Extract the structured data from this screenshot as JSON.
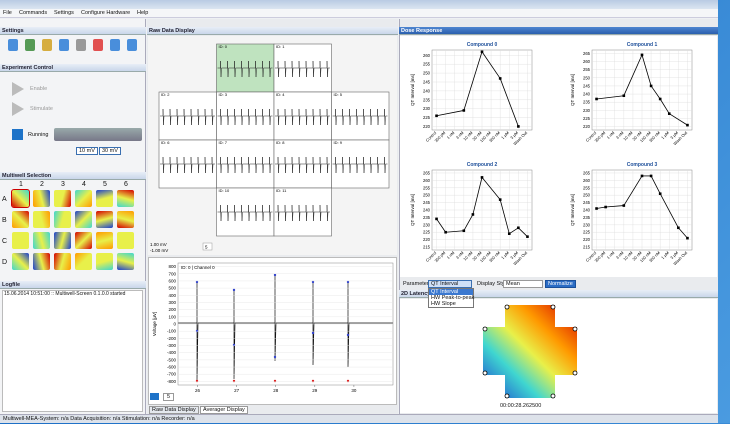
{
  "menu": [
    "File",
    "Commands",
    "Settings",
    "Configure Hardware",
    "Help"
  ],
  "panels": {
    "settings": "Settings",
    "experiment": "Experiment Control",
    "multiwell": "Multiwell Selection",
    "logfile": "Logfile",
    "raw": "Raw Data Display",
    "dose": "Dose Response",
    "latency": "2D Latency"
  },
  "experiment": {
    "enable": "Enable",
    "stimulate": "Stimulate",
    "running": "Running",
    "level_1": "10 mV",
    "level_2": "30 mV"
  },
  "multiwell": {
    "columns": [
      "1",
      "2",
      "3",
      "4",
      "5",
      "6"
    ],
    "rows": [
      "A",
      "B",
      "C",
      "D"
    ]
  },
  "log": [
    "15.06.2014 10:51:00 :: Multiwell-Screen 0.1.0.0 started"
  ],
  "raw": {
    "electrodes": [
      "ID: 0",
      "ID: 1",
      "ID: 2",
      "ID: 3",
      "ID: 4",
      "ID: 5",
      "ID: 6",
      "ID: 7",
      "ID: 8",
      "ID: 9",
      "ID: 10",
      "ID: 11"
    ],
    "scale_top": "1.00 mV",
    "scale_bottom": "-1.00 mV",
    "zoom": "5"
  },
  "channel_chart": {
    "title": "ID: 0 | Channel 0",
    "y_label": "Voltage [µV]",
    "zoom": "5",
    "ylim": [
      -850,
      850
    ],
    "yticks": [
      800,
      700,
      600,
      500,
      400,
      300,
      200,
      100,
      0,
      -100,
      -200,
      -300,
      -400,
      -500,
      -600,
      -700,
      -800
    ],
    "xlim": [
      25.5,
      31.0
    ],
    "xticks": [
      26,
      27,
      28,
      29,
      30
    ]
  },
  "tabs": [
    "Raw Data Display",
    "Averager Display"
  ],
  "chart_data": [
    {
      "type": "line",
      "title": "Compound 0",
      "y_label": "QT Interval [ms]",
      "color": "#000000",
      "categories": [
        "Control",
        "300 pM",
        "1 nM",
        "3 nM",
        "10 nM",
        "30 nM",
        "100 nM",
        "300 nM",
        "1 µM",
        "3 µM",
        "Wash Out"
      ],
      "values": [
        226,
        null,
        null,
        229,
        null,
        262,
        null,
        247,
        null,
        220,
        null
      ],
      "ylim": [
        218,
        263
      ],
      "yticks": [
        220,
        225,
        230,
        235,
        240,
        245,
        250,
        255,
        260
      ],
      "grid": true
    },
    {
      "type": "line",
      "title": "Compound 1",
      "y_label": "QT Interval [ms]",
      "color": "#000000",
      "categories": [
        "Control",
        "300 pM",
        "1 nM",
        "3 nM",
        "10 nM",
        "30 nM",
        "100 nM",
        "300 nM",
        "1 µM",
        "3 µM",
        "Wash Out"
      ],
      "values": [
        237,
        null,
        null,
        239,
        null,
        264,
        245,
        237,
        228,
        null,
        221
      ],
      "ylim": [
        218,
        267
      ],
      "yticks": [
        220,
        225,
        230,
        235,
        240,
        245,
        250,
        255,
        260,
        265
      ],
      "grid": true
    },
    {
      "type": "line",
      "title": "Compound 2",
      "y_label": "QT Interval [ms]",
      "color": "#000000",
      "categories": [
        "Control",
        "300 pM",
        "1 nM",
        "3 nM",
        "10 nM",
        "30 nM",
        "100 nM",
        "300 nM",
        "1 µM",
        "3 µM",
        "Wash Out"
      ],
      "values": [
        234,
        225,
        null,
        226,
        237,
        262,
        null,
        247,
        224,
        228,
        222
      ],
      "ylim": [
        213,
        267
      ],
      "yticks": [
        215,
        220,
        225,
        230,
        235,
        240,
        245,
        250,
        255,
        260,
        265
      ],
      "grid": true
    },
    {
      "type": "line",
      "title": "Compound 3",
      "y_label": "QT Interval [ms]",
      "color": "#000000",
      "categories": [
        "Control",
        "300 pM",
        "1 nM",
        "3 nM",
        "10 nM",
        "30 nM",
        "100 nM",
        "300 nM",
        "1 µM",
        "3 µM",
        "Wash Out"
      ],
      "values": [
        241,
        242,
        null,
        243,
        null,
        263,
        263,
        251,
        null,
        228,
        221
      ],
      "ylim": [
        213,
        267
      ],
      "yticks": [
        215,
        220,
        225,
        230,
        235,
        240,
        245,
        250,
        255,
        260,
        265
      ],
      "grid": true
    }
  ],
  "controls": {
    "parameter_label": "Parameter",
    "parameter": "QT Interval",
    "options": [
      "QT Interval",
      "HW Peak-to-peak",
      "HW Slope"
    ],
    "display_label": "Display Style",
    "display": "Mean",
    "normalize": "Normalize"
  },
  "latency": {
    "timestamp": "00:00:28.262500"
  },
  "status": "Multiwell-MEA-System: n/a  Data Acquisition: n/a  Stimulation: n/a  Recorder: n/a"
}
